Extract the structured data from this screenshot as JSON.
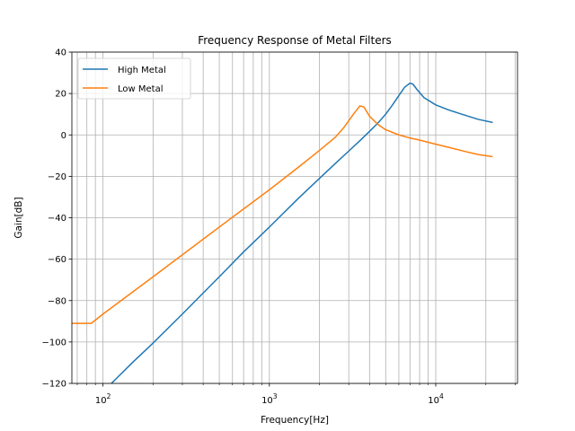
{
  "chart_data": {
    "type": "line",
    "title": "Frequency Response of Metal Filters",
    "xlabel": "Frequency[Hz]",
    "ylabel": "Gain[dB]",
    "xscale": "log",
    "xlim": [
      65,
      31000
    ],
    "ylim": [
      -120,
      40
    ],
    "grid": true,
    "legend_position": "upper left",
    "x_major_ticks": [
      {
        "value": 100,
        "base": "10",
        "exp": "2"
      },
      {
        "value": 1000,
        "base": "10",
        "exp": "3"
      },
      {
        "value": 10000,
        "base": "10",
        "exp": "4"
      }
    ],
    "y_ticks": [
      {
        "value": 40,
        "label": "40"
      },
      {
        "value": 20,
        "label": "20"
      },
      {
        "value": 0,
        "label": "0"
      },
      {
        "value": -20,
        "label": "−20"
      },
      {
        "value": -40,
        "label": "−40"
      },
      {
        "value": -60,
        "label": "−60"
      },
      {
        "value": -80,
        "label": "−80"
      },
      {
        "value": -100,
        "label": "−100"
      },
      {
        "value": -120,
        "label": "−120"
      }
    ],
    "series": [
      {
        "name": "High Metal",
        "color": "#1f77b4",
        "x": [
          100,
          150,
          200,
          300,
          500,
          700,
          1000,
          1500,
          2000,
          2500,
          3000,
          3500,
          4000,
          4500,
          5000,
          5500,
          6000,
          6500,
          7000,
          7300,
          7700,
          8500,
          10000,
          12000,
          15000,
          18000,
          22000
        ],
        "y": [
          -124,
          -110,
          -100.5,
          -86.5,
          -68.5,
          -56.5,
          -44.5,
          -30.5,
          -21,
          -13.7,
          -7.8,
          -2.8,
          1.7,
          5.8,
          10,
          14.5,
          19,
          23,
          25,
          24.5,
          22,
          18,
          14.5,
          12,
          9.5,
          7.5,
          6
        ]
      },
      {
        "name": "Low Metal",
        "color": "#ff7f0e",
        "x": [
          65,
          85,
          100,
          200,
          500,
          1000,
          1500,
          2000,
          2500,
          2800,
          3200,
          3500,
          3700,
          4000,
          4500,
          5000,
          6000,
          7000,
          8000,
          10000,
          12000,
          15000,
          18000,
          22000
        ],
        "y": [
          -91,
          -91,
          -86.5,
          -68.5,
          -44.5,
          -26.5,
          -15.5,
          -7.5,
          -1,
          3.5,
          10,
          14,
          13.5,
          9,
          5,
          2.5,
          0,
          -1.5,
          -2.5,
          -4.5,
          -6,
          -8,
          -9.5,
          -10.5
        ]
      }
    ]
  }
}
